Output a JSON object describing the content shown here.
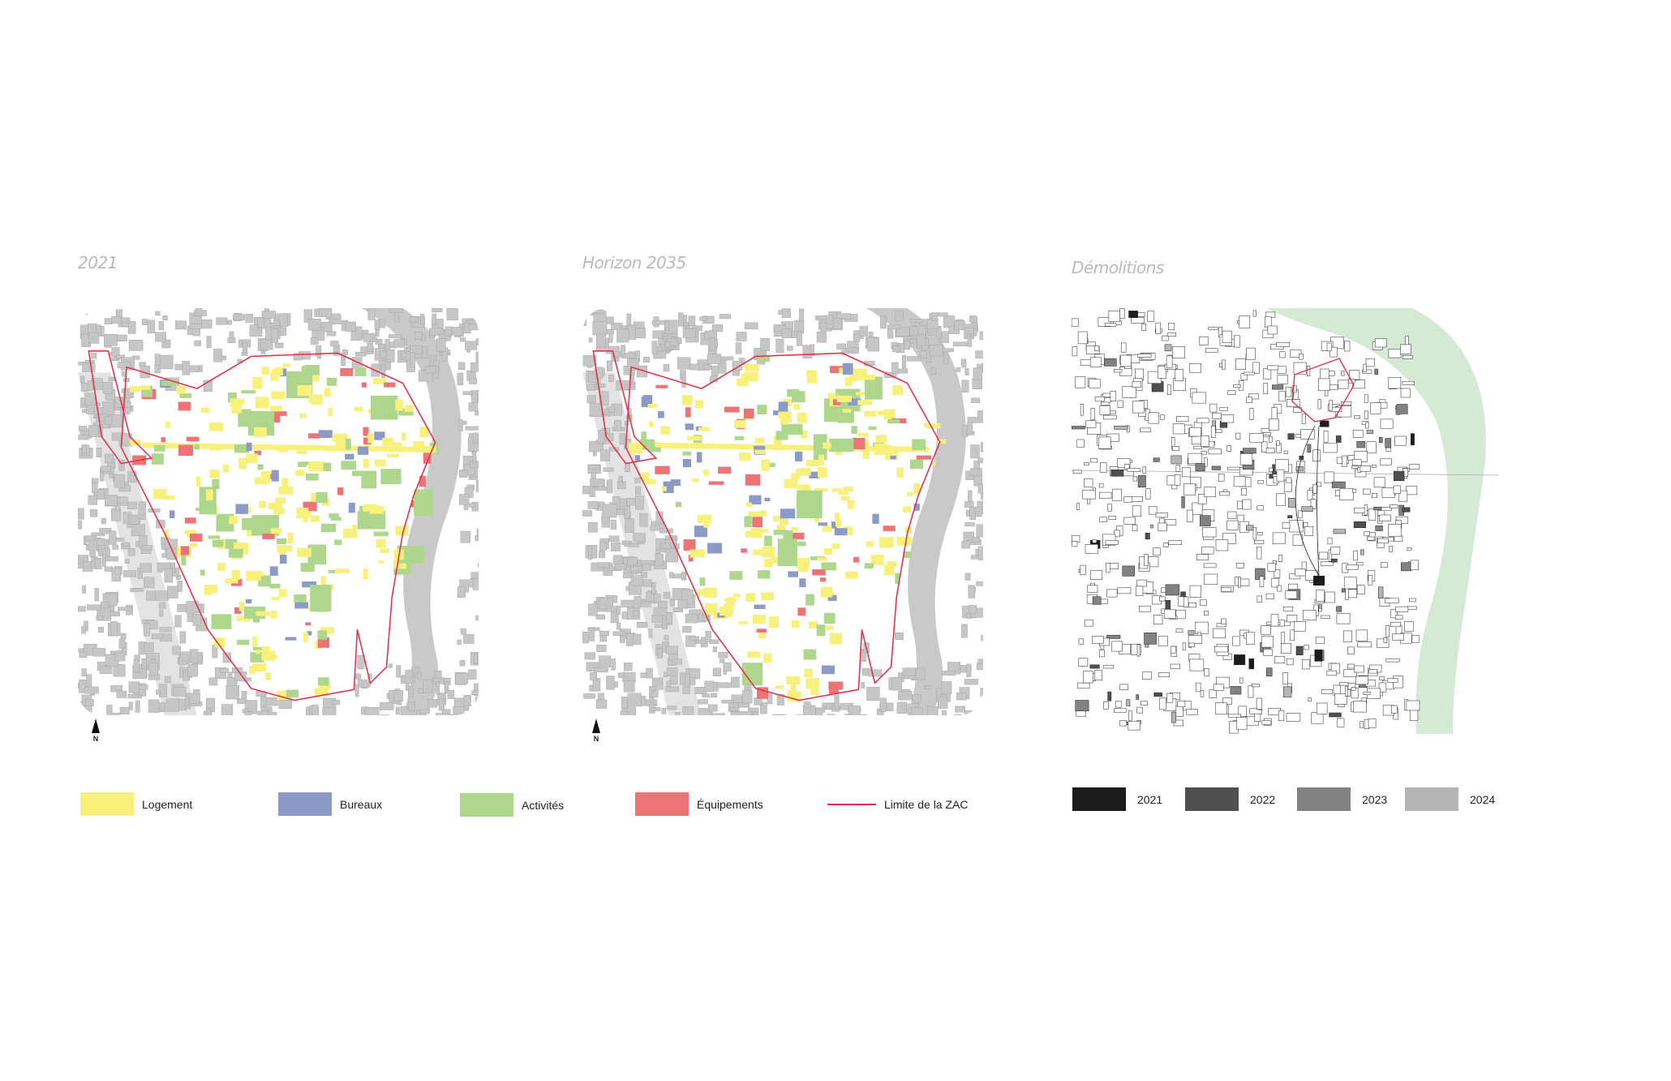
{
  "panels": [
    {
      "id": "2021",
      "title": "2021",
      "north_label": "N"
    },
    {
      "id": "2035",
      "title": "Horizon 2035",
      "north_label": "N"
    },
    {
      "id": "demolitions",
      "title": "Démolitions"
    }
  ],
  "legend_landuse": [
    {
      "key": "logement",
      "label": "Logement",
      "color": "#f7f07a"
    },
    {
      "key": "bureaux",
      "label": "Bureaux",
      "color": "#8c9ac7"
    },
    {
      "key": "activites",
      "label": "Activités",
      "color": "#afd68d"
    },
    {
      "key": "equipements",
      "label": "Équipements",
      "color": "#ec7476"
    },
    {
      "key": "limite",
      "label": "Limite de la ZAC",
      "color": "#e2354d"
    }
  ],
  "legend_demolitions": [
    {
      "key": "2021",
      "label": "2021",
      "color": "#1c1c1c"
    },
    {
      "key": "2022",
      "label": "2022",
      "color": "#4f4f4f"
    },
    {
      "key": "2023",
      "label": "2023",
      "color": "#828282"
    },
    {
      "key": "2024",
      "label": "2024",
      "color": "#b5b5b5"
    }
  ],
  "colors": {
    "context_buildings": "#c6c6c6",
    "river": "#c9c9c9",
    "green_area": "#d5ead4",
    "outline": "#1e1e1e"
  }
}
